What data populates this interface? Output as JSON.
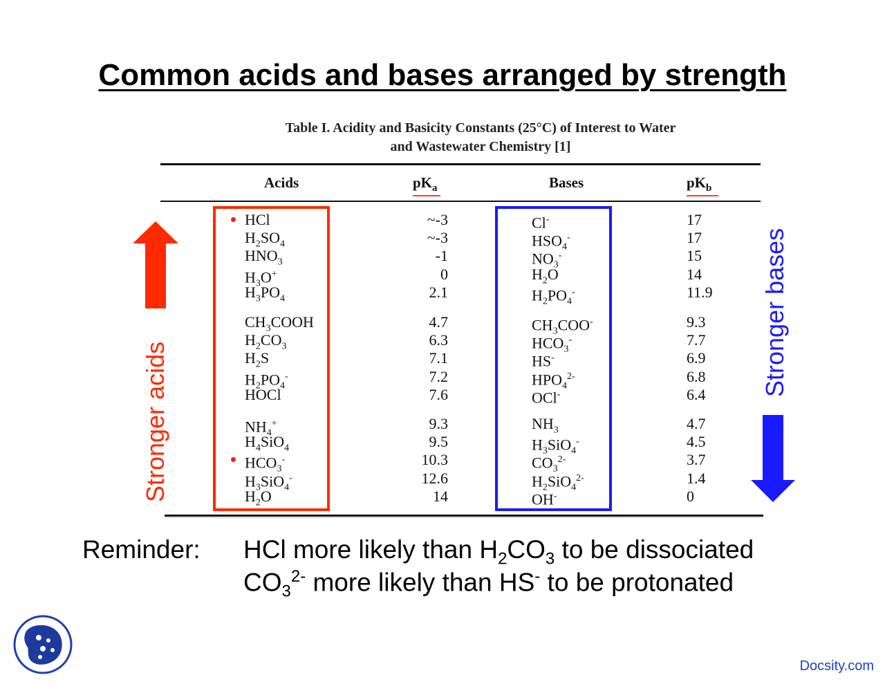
{
  "slide": {
    "title": "Common acids and bases arranged by strength"
  },
  "table": {
    "caption_line1": "Table I.  Acidity and Basicity Constants (25°C) of Interest to Water",
    "caption_line2": "and Wastewater Chemistry [1]",
    "headers": {
      "acids": "Acids",
      "pka_main": "pK",
      "pka_sub": "a",
      "bases": "Bases",
      "pkb_main": "pK",
      "pkb_sub": "b"
    },
    "groups": [
      {
        "rows": [
          {
            "acid": [
              [
                "HCl",
                ""
              ]
            ],
            "pka": "~-3",
            "base": [
              [
                "Cl",
                ""
              ],
              [
                "-",
                "sup"
              ]
            ],
            "pkb": "17",
            "marked": true
          },
          {
            "acid": [
              [
                "H",
                ""
              ],
              [
                "2",
                "sub"
              ],
              [
                "SO",
                ""
              ],
              [
                "4",
                "sub"
              ]
            ],
            "pka": "~-3",
            "base": [
              [
                "HSO",
                ""
              ],
              [
                "4",
                "sub"
              ],
              [
                "-",
                "sup"
              ]
            ],
            "pkb": "17",
            "marked": false
          },
          {
            "acid": [
              [
                "HNO",
                ""
              ],
              [
                "3",
                "sub"
              ]
            ],
            "pka": "-1",
            "base": [
              [
                "NO",
                ""
              ],
              [
                "3",
                "sub"
              ],
              [
                "-",
                "sup"
              ]
            ],
            "pkb": "15",
            "marked": false
          },
          {
            "acid": [
              [
                "H",
                ""
              ],
              [
                "3",
                "sub"
              ],
              [
                "O",
                ""
              ],
              [
                "+",
                "sup"
              ]
            ],
            "pka": "0",
            "base": [
              [
                "H",
                ""
              ],
              [
                "2",
                "sub"
              ],
              [
                "O",
                ""
              ]
            ],
            "pkb": "14",
            "marked": false
          },
          {
            "acid": [
              [
                "H",
                ""
              ],
              [
                "3",
                "sub"
              ],
              [
                "PO",
                ""
              ],
              [
                "4",
                "sub"
              ]
            ],
            "pka": "2.1",
            "base": [
              [
                "H",
                ""
              ],
              [
                "2",
                "sub"
              ],
              [
                "PO",
                ""
              ],
              [
                "4",
                "sub"
              ],
              [
                "-",
                "sup"
              ]
            ],
            "pkb": "11.9",
            "marked": false
          }
        ]
      },
      {
        "rows": [
          {
            "acid": [
              [
                "CH",
                ""
              ],
              [
                "3",
                "sub"
              ],
              [
                "COOH",
                ""
              ]
            ],
            "pka": "4.7",
            "base": [
              [
                "CH",
                ""
              ],
              [
                "3",
                "sub"
              ],
              [
                "COO",
                ""
              ],
              [
                "-",
                "sup"
              ]
            ],
            "pkb": "9.3",
            "marked": false
          },
          {
            "acid": [
              [
                "H",
                ""
              ],
              [
                "2",
                "sub"
              ],
              [
                "CO",
                ""
              ],
              [
                "3",
                "sub"
              ]
            ],
            "pka": "6.3",
            "base": [
              [
                "HCO",
                ""
              ],
              [
                "3",
                "sub"
              ],
              [
                "-",
                "sup"
              ]
            ],
            "pkb": "7.7",
            "marked": false
          },
          {
            "acid": [
              [
                "H",
                ""
              ],
              [
                "2",
                "sub"
              ],
              [
                "S",
                ""
              ]
            ],
            "pka": "7.1",
            "base": [
              [
                "HS",
                ""
              ],
              [
                "-",
                "sup"
              ]
            ],
            "pkb": "6.9",
            "marked": false
          },
          {
            "acid": [
              [
                "H",
                ""
              ],
              [
                "2",
                "sub"
              ],
              [
                "PO",
                ""
              ],
              [
                "4",
                "sub"
              ],
              [
                "-",
                "sup"
              ]
            ],
            "pka": "7.2",
            "base": [
              [
                "HPO",
                ""
              ],
              [
                "4",
                "sub"
              ],
              [
                "2-",
                "sup"
              ]
            ],
            "pkb": "6.8",
            "marked": false
          },
          {
            "acid": [
              [
                "HOCl",
                ""
              ]
            ],
            "pka": "7.6",
            "base": [
              [
                "OCl",
                ""
              ],
              [
                "-",
                "sup"
              ]
            ],
            "pkb": "6.4",
            "marked": false
          }
        ]
      },
      {
        "rows": [
          {
            "acid": [
              [
                "NH",
                ""
              ],
              [
                "4",
                "sub"
              ],
              [
                "+",
                "sup"
              ]
            ],
            "pka": "9.3",
            "base": [
              [
                "NH",
                ""
              ],
              [
                "3",
                "sub"
              ]
            ],
            "pkb": "4.7",
            "marked": false
          },
          {
            "acid": [
              [
                "H",
                ""
              ],
              [
                "4",
                "sub"
              ],
              [
                "SiO",
                ""
              ],
              [
                "4",
                "sub"
              ]
            ],
            "pka": "9.5",
            "base": [
              [
                "H",
                ""
              ],
              [
                "3",
                "sub"
              ],
              [
                "SiO",
                ""
              ],
              [
                "4",
                "sub"
              ],
              [
                "-",
                "sup"
              ]
            ],
            "pkb": "4.5",
            "marked": false
          },
          {
            "acid": [
              [
                "HCO",
                ""
              ],
              [
                "3",
                "sub"
              ],
              [
                "-",
                "sup"
              ]
            ],
            "pka": "10.3",
            "base": [
              [
                "CO",
                ""
              ],
              [
                "3",
                "sub"
              ],
              [
                "2-",
                "sup"
              ]
            ],
            "pkb": "3.7",
            "marked": true
          },
          {
            "acid": [
              [
                "H",
                ""
              ],
              [
                "3",
                "sub"
              ],
              [
                "SiO",
                ""
              ],
              [
                "4",
                "sub"
              ],
              [
                "-",
                "sup"
              ]
            ],
            "pka": "12.6",
            "base": [
              [
                "H",
                ""
              ],
              [
                "2",
                "sub"
              ],
              [
                "SiO",
                ""
              ],
              [
                "4",
                "sub"
              ],
              [
                "2-",
                "sup"
              ]
            ],
            "pkb": "1.4",
            "marked": false
          },
          {
            "acid": [
              [
                "H",
                ""
              ],
              [
                "2",
                "sub"
              ],
              [
                "O",
                ""
              ]
            ],
            "pka": "14",
            "base": [
              [
                "OH",
                ""
              ],
              [
                "-",
                "sup"
              ]
            ],
            "pkb": "0",
            "marked": false
          }
        ]
      }
    ]
  },
  "labels": {
    "stronger_acids": "Stronger acids",
    "stronger_bases": "Stronger bases"
  },
  "reminder": {
    "label": "Reminder:",
    "line1": [
      [
        "HCl more likely than H",
        ""
      ],
      [
        "2",
        "sub"
      ],
      [
        "CO",
        ""
      ],
      [
        "3",
        "sub"
      ],
      [
        " to be dissociated",
        ""
      ]
    ],
    "line2": [
      [
        "CO",
        ""
      ],
      [
        "3",
        "sub"
      ],
      [
        "2-",
        "sup"
      ],
      [
        " more likely than HS",
        ""
      ],
      [
        "-",
        "sup"
      ],
      [
        " to be protonated",
        ""
      ]
    ]
  },
  "footer": {
    "brand": "Docsity.com"
  },
  "colors": {
    "acids_accent": "#ff2a00",
    "bases_accent": "#1a1aff",
    "brand": "#1a3fd0"
  },
  "icons": {
    "logo": "docsity-logo-icon",
    "up_arrow": "arrow-up-icon",
    "down_arrow": "arrow-down-icon"
  }
}
